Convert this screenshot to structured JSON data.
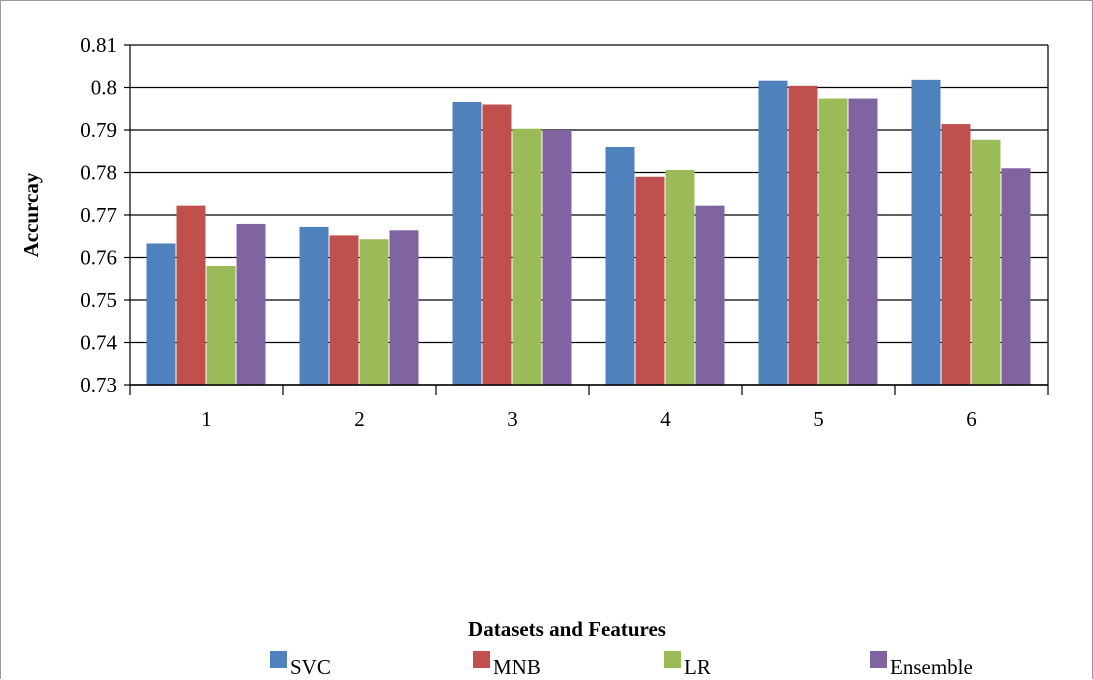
{
  "chart_data": {
    "type": "bar",
    "categories": [
      "1",
      "2",
      "3",
      "4",
      "5",
      "6"
    ],
    "series": [
      {
        "name": "SVC",
        "color": "#4f81bd",
        "values": [
          0.7633,
          0.7672,
          0.7966,
          0.786,
          0.8016,
          0.8018
        ]
      },
      {
        "name": "MNB",
        "color": "#c0504d",
        "values": [
          0.7722,
          0.7652,
          0.796,
          0.779,
          0.8004,
          0.7914
        ]
      },
      {
        "name": "LR",
        "color": "#9bbb59",
        "values": [
          0.758,
          0.7643,
          0.7903,
          0.7806,
          0.7974,
          0.7877
        ]
      },
      {
        "name": "Ensemble",
        "color": "#8064a2",
        "values": [
          0.7679,
          0.7664,
          0.79,
          0.7722,
          0.7974,
          0.781
        ]
      }
    ],
    "ylabel": "Accurcay",
    "xlabel": "Datasets and Features",
    "ylim": [
      0.73,
      0.81
    ],
    "yticks": [
      "0.73",
      "0.74",
      "0.75",
      "0.76",
      "0.77",
      "0.78",
      "0.79",
      "0.8",
      "0.81"
    ],
    "grid": true,
    "legend_position": "bottom"
  }
}
